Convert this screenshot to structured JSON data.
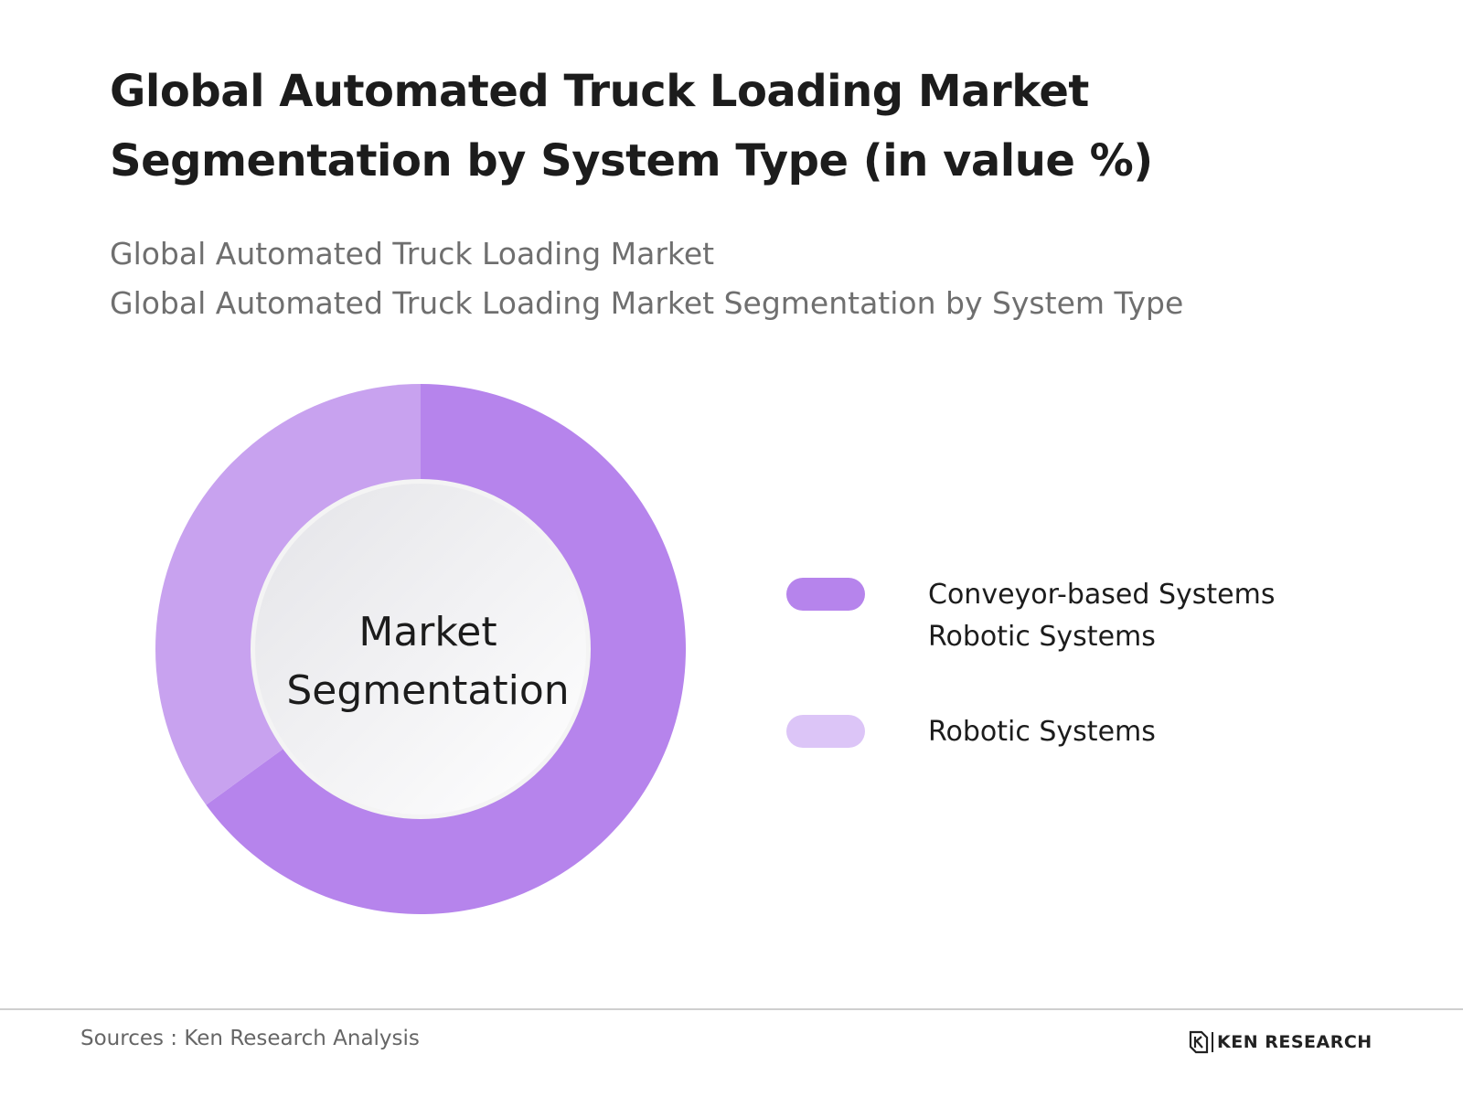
{
  "header": {
    "title": "Global Automated Truck Loading Market Segmentation by System Type (in value %)",
    "subtitle_line1": "Global Automated Truck Loading Market",
    "subtitle_line2": "Global Automated Truck Loading Market Segmentation by System Type"
  },
  "chart_data": {
    "type": "pie",
    "title": "Global Automated Truck Loading Market Segmentation by System Type (in value %)",
    "center_label": [
      "Market",
      "Segmentation"
    ],
    "categories": [
      "Conveyor-based Systems Robotic Systems",
      "Robotic Systems"
    ],
    "values": [
      65,
      35
    ],
    "value_unit": "%",
    "colors": [
      "#b684ec",
      "#c8a2ef"
    ],
    "legend_colors": [
      "#b684ec",
      "#dcc5f7"
    ],
    "legend": {
      "placement": "right",
      "entries": [
        {
          "lines": [
            "Conveyor-based Systems",
            "Robotic Systems"
          ],
          "color": "#b684ec"
        },
        {
          "lines": [
            "Robotic Systems"
          ],
          "color": "#dcc5f7"
        }
      ]
    }
  },
  "footer": {
    "source": "Sources : Ken Research Analysis",
    "logo_text": "KEN RESEARCH",
    "logo_icon": "ken-research-k-logo-icon"
  }
}
